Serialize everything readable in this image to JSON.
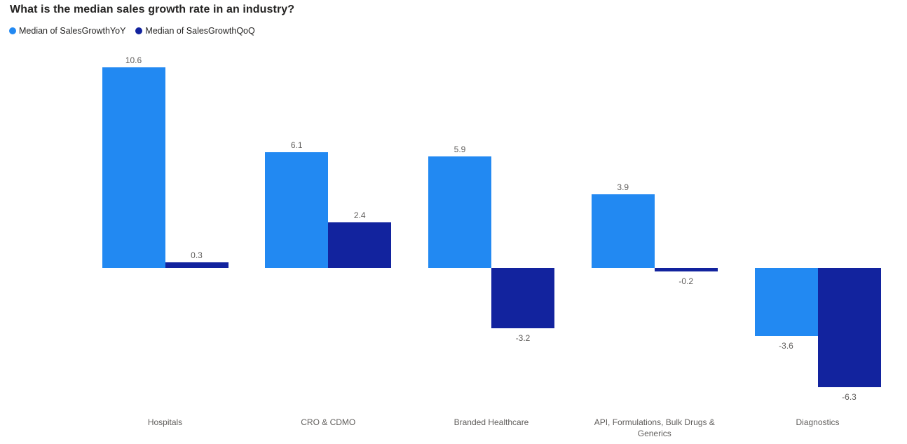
{
  "title": "What is the median sales growth rate in an industry?",
  "legend": [
    {
      "label": "Median of SalesGrowthYoY",
      "color": "#2289F2"
    },
    {
      "label": "Median of SalesGrowthQoQ",
      "color": "#12239E"
    }
  ],
  "chart_data": {
    "type": "bar",
    "title": "What is the median sales growth rate in an industry?",
    "categories": [
      "Hospitals",
      "CRO & CDMO",
      "Branded Healthcare",
      "API, Formulations, Bulk Drugs & Generics",
      "Diagnostics"
    ],
    "series": [
      {
        "name": "Median of SalesGrowthYoY",
        "color": "#2289F2",
        "values": [
          10.6,
          6.1,
          5.9,
          3.9,
          -3.6
        ]
      },
      {
        "name": "Median of SalesGrowthQoQ",
        "color": "#12239E",
        "values": [
          0.3,
          2.4,
          -3.2,
          -0.2,
          -6.3
        ]
      }
    ],
    "data_labels": [
      [
        "10.6",
        "6.1",
        "5.9",
        "3.9",
        "-3.6"
      ],
      [
        "0.3",
        "2.4",
        "-3.2",
        "-0.2",
        "-6.3"
      ]
    ],
    "xlabel": "",
    "ylabel": "",
    "grid": false,
    "legend_position": "top-left",
    "ylim": [
      -7,
      11.5
    ],
    "data_label_color": "#605E5C",
    "axis_label_color": "#605E5C"
  }
}
